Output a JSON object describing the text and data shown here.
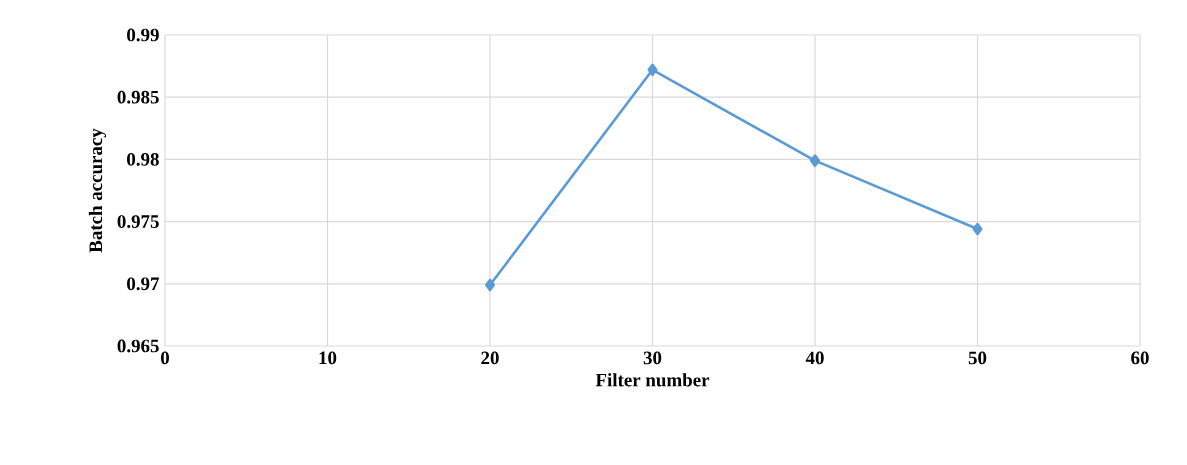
{
  "chart_data": {
    "type": "line",
    "xlabel": "Filter number",
    "ylabel": "Batch accuracy",
    "x": [
      20,
      30,
      40,
      50
    ],
    "series": [
      {
        "color": "#5b9bd5",
        "values": [
          0.9699,
          0.9872,
          0.9799,
          0.9744
        ]
      }
    ],
    "xlim": [
      0,
      60
    ],
    "ylim": [
      0.965,
      0.99
    ],
    "xticks": [
      0,
      10,
      20,
      30,
      40,
      50,
      60
    ],
    "yticks": [
      0.965,
      0.97,
      0.975,
      0.98,
      0.985,
      0.99
    ],
    "grid": true,
    "marker": "diamond",
    "line_style": "solid"
  }
}
